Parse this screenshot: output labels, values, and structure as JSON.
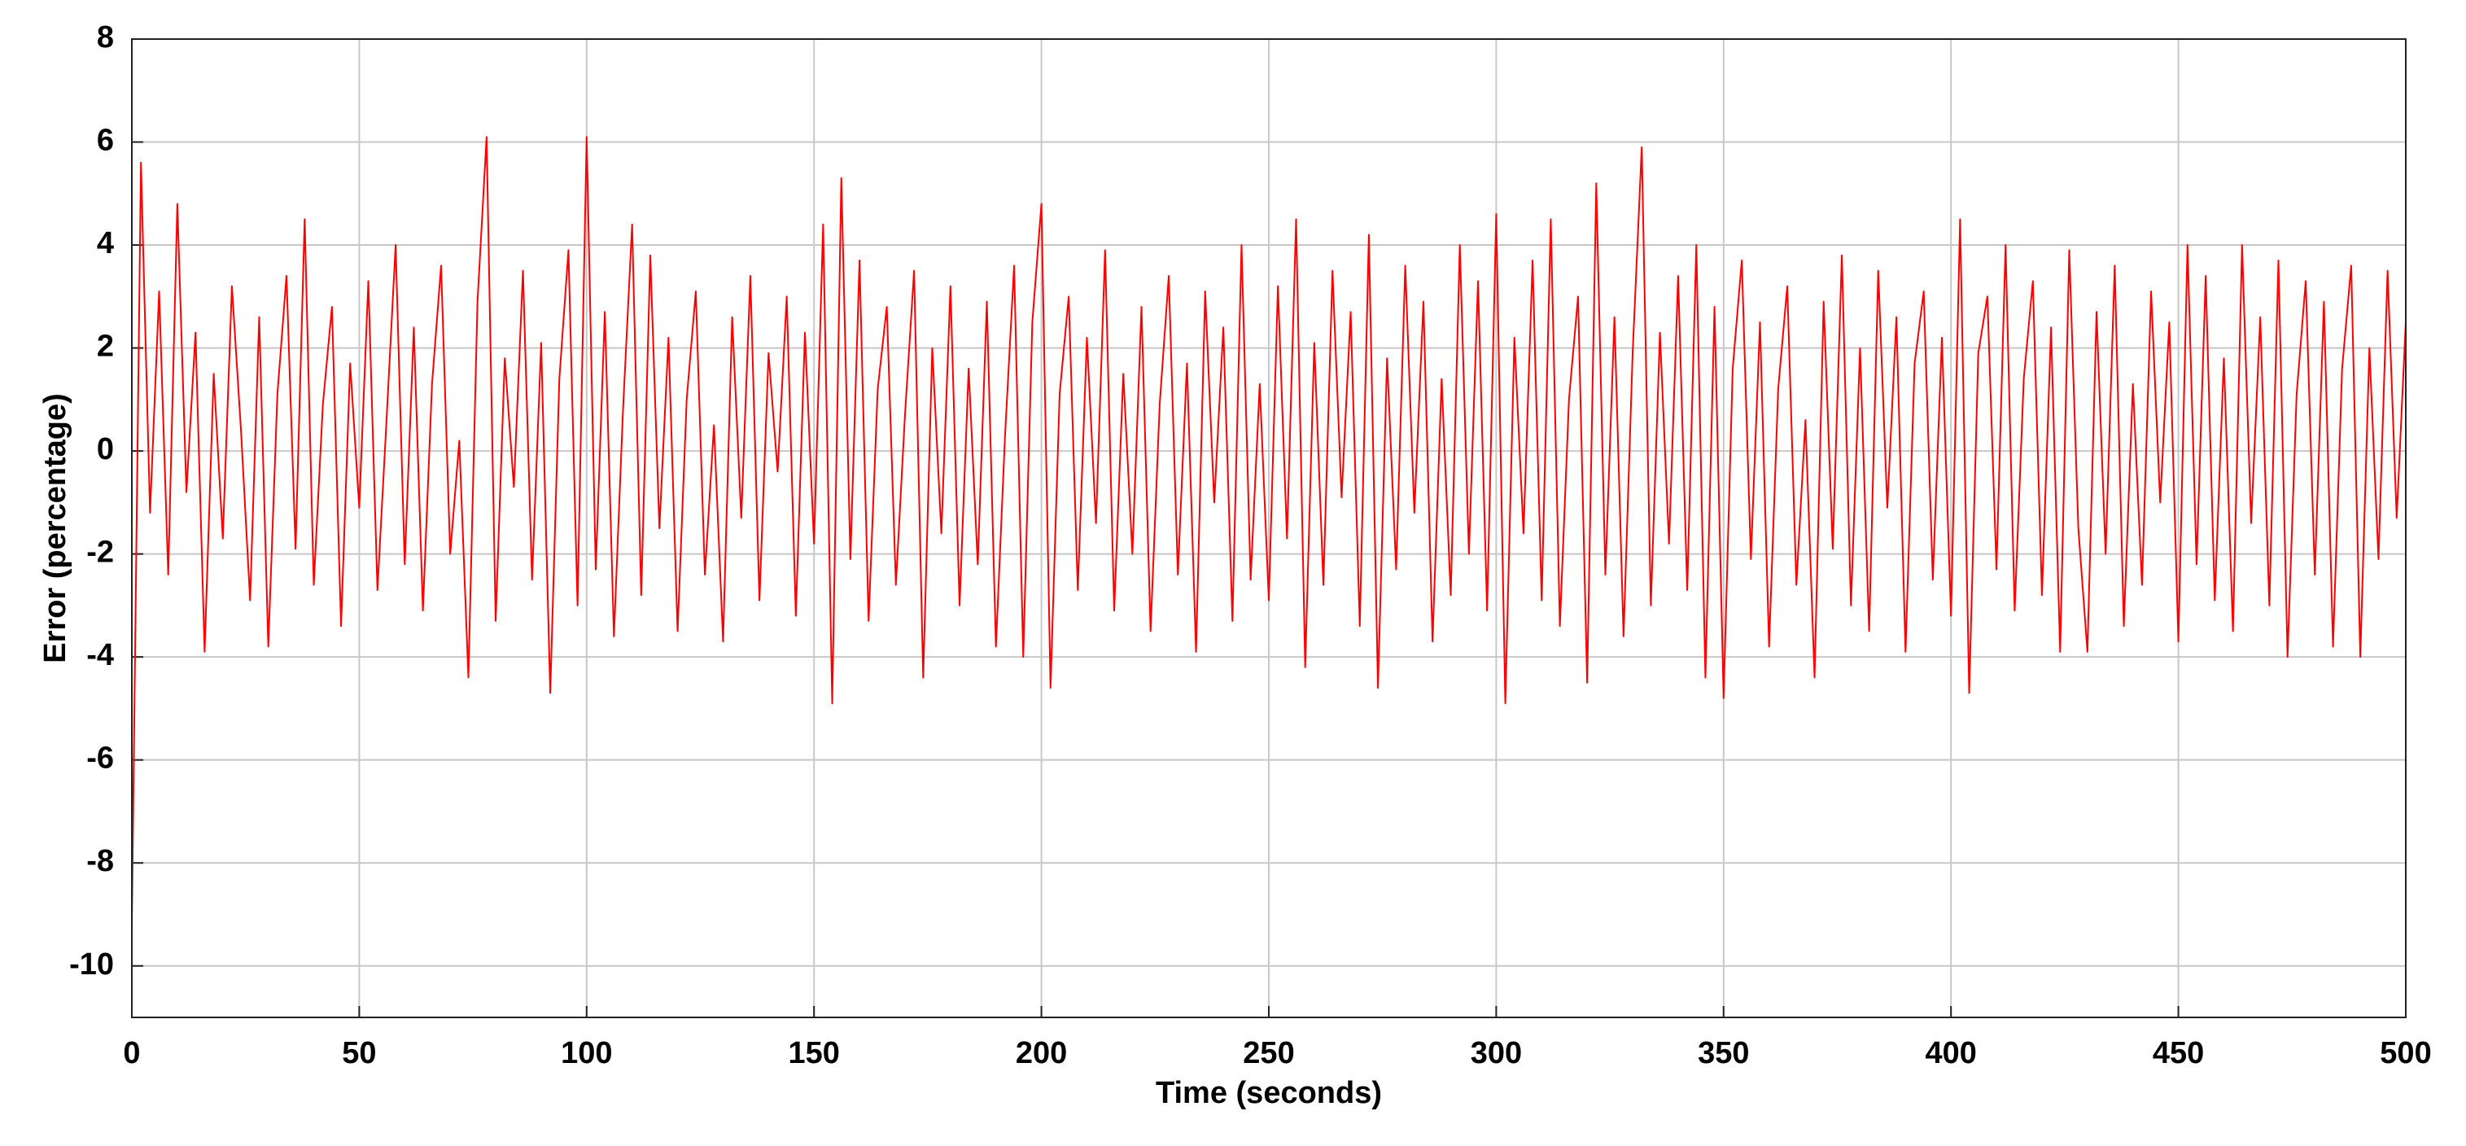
{
  "chart_data": {
    "type": "line",
    "xlabel": "Time (seconds)",
    "ylabel": "Error (percentage)",
    "color": "#ff0000",
    "grid": true,
    "xlim": [
      0,
      500
    ],
    "xticks": [
      0,
      50,
      100,
      150,
      200,
      250,
      300,
      350,
      400,
      450,
      500
    ],
    "ylim": [
      -11,
      8
    ],
    "yticks": [
      -10,
      -8,
      -6,
      -4,
      -2,
      0,
      2,
      4,
      6,
      8
    ],
    "x": [
      0,
      2,
      4,
      6,
      8,
      10,
      12,
      14,
      16,
      18,
      20,
      22,
      24,
      26,
      28,
      30,
      32,
      34,
      36,
      38,
      40,
      42,
      44,
      46,
      48,
      50,
      52,
      54,
      56,
      58,
      60,
      62,
      64,
      66,
      68,
      70,
      72,
      74,
      76,
      78,
      80,
      82,
      84,
      86,
      88,
      90,
      92,
      94,
      96,
      98,
      100,
      102,
      104,
      106,
      108,
      110,
      112,
      114,
      116,
      118,
      120,
      122,
      124,
      126,
      128,
      130,
      132,
      134,
      136,
      138,
      140,
      142,
      144,
      146,
      148,
      150,
      152,
      154,
      156,
      158,
      160,
      162,
      164,
      166,
      168,
      170,
      172,
      174,
      176,
      178,
      180,
      182,
      184,
      186,
      188,
      190,
      192,
      194,
      196,
      198,
      200,
      202,
      204,
      206,
      208,
      210,
      212,
      214,
      216,
      218,
      220,
      222,
      224,
      226,
      228,
      230,
      232,
      234,
      236,
      238,
      240,
      242,
      244,
      246,
      248,
      250,
      252,
      254,
      256,
      258,
      260,
      262,
      264,
      266,
      268,
      270,
      272,
      274,
      276,
      278,
      280,
      282,
      284,
      286,
      288,
      290,
      292,
      294,
      296,
      298,
      300,
      302,
      304,
      306,
      308,
      310,
      312,
      314,
      316,
      318,
      320,
      322,
      324,
      326,
      328,
      330,
      332,
      334,
      336,
      338,
      340,
      342,
      344,
      346,
      348,
      350,
      352,
      354,
      356,
      358,
      360,
      362,
      364,
      366,
      368,
      370,
      372,
      374,
      376,
      378,
      380,
      382,
      384,
      386,
      388,
      390,
      392,
      394,
      396,
      398,
      400,
      402,
      404,
      406,
      408,
      410,
      412,
      414,
      416,
      418,
      420,
      422,
      424,
      426,
      428,
      430,
      432,
      434,
      436,
      438,
      440,
      442,
      444,
      446,
      448,
      450,
      452,
      454,
      456,
      458,
      460,
      462,
      464,
      466,
      468,
      470,
      472,
      474,
      476,
      478,
      480,
      482,
      484,
      486,
      488,
      490,
      492,
      494,
      496,
      498,
      500
    ],
    "values": [
      -9.2,
      5.6,
      -1.2,
      3.1,
      -2.4,
      4.8,
      -0.8,
      2.3,
      -3.9,
      1.5,
      -1.7,
      3.2,
      0.4,
      -2.9,
      2.6,
      -3.8,
      1.1,
      3.4,
      -1.9,
      4.5,
      -2.6,
      0.9,
      2.8,
      -3.4,
      1.7,
      -1.1,
      3.3,
      -2.7,
      0.6,
      4.0,
      -2.2,
      2.4,
      -3.1,
      1.3,
      3.6,
      -2.0,
      0.2,
      -4.4,
      2.9,
      6.1,
      -3.3,
      1.8,
      -0.7,
      3.5,
      -2.5,
      2.1,
      -4.7,
      1.4,
      3.9,
      -3.0,
      6.1,
      -2.3,
      2.7,
      -3.6,
      0.8,
      4.4,
      -2.8,
      3.8,
      -1.5,
      2.2,
      -3.5,
      1.0,
      3.1,
      -2.4,
      0.5,
      -3.7,
      2.6,
      -1.3,
      3.4,
      -2.9,
      1.9,
      -0.4,
      3.0,
      -3.2,
      2.3,
      -1.8,
      4.4,
      -4.9,
      5.3,
      -2.1,
      3.7,
      -3.3,
      1.2,
      2.8,
      -2.6,
      0.7,
      3.5,
      -4.4,
      2.0,
      -1.6,
      3.2,
      -3.0,
      1.6,
      -2.2,
      2.9,
      -3.8,
      0.3,
      3.6,
      -4.0,
      2.5,
      4.8,
      -4.6,
      1.1,
      3.0,
      -2.7,
      2.2,
      -1.4,
      3.9,
      -3.1,
      1.5,
      -2.0,
      2.8,
      -3.5,
      0.9,
      3.4,
      -2.4,
      1.7,
      -3.9,
      3.1,
      -1.0,
      2.4,
      -3.3,
      4.0,
      -2.5,
      1.3,
      -2.9,
      3.2,
      -1.7,
      4.5,
      -4.2,
      2.1,
      -2.6,
      3.5,
      -0.9,
      2.7,
      -3.4,
      4.2,
      -4.6,
      1.8,
      -2.3,
      3.6,
      -1.2,
      2.9,
      -3.7,
      1.4,
      -2.8,
      4.0,
      -2.0,
      3.3,
      -3.1,
      4.6,
      -4.9,
      2.2,
      -1.6,
      3.7,
      -2.9,
      4.5,
      -3.4,
      1.0,
      3.0,
      -4.5,
      5.2,
      -2.4,
      2.6,
      -3.6,
      1.9,
      5.9,
      -3.0,
      2.3,
      -1.8,
      3.4,
      -2.7,
      4.0,
      -4.4,
      2.8,
      -4.8,
      1.6,
      3.7,
      -2.1,
      2.5,
      -3.8,
      1.2,
      3.2,
      -2.6,
      0.6,
      -4.4,
      2.9,
      -1.9,
      3.8,
      -3.0,
      2.0,
      -3.5,
      3.5,
      -1.1,
      2.6,
      -3.9,
      1.7,
      3.1,
      -2.5,
      2.2,
      -3.2,
      4.5,
      -4.7,
      1.9,
      3.0,
      -2.3,
      4.0,
      -3.1,
      1.4,
      3.3,
      -2.8,
      2.4,
      -3.9,
      3.9,
      -1.5,
      -3.9,
      2.7,
      -2.0,
      3.6,
      -3.4,
      1.3,
      -2.6,
      3.1,
      -1.0,
      2.5,
      -3.7,
      4.0,
      -2.2,
      3.4,
      -2.9,
      1.8,
      -3.5,
      4.0,
      -1.4,
      2.6,
      -3.0,
      3.7,
      -4.0,
      1.1,
      3.3,
      -2.4,
      2.9,
      -3.8,
      1.6,
      3.6,
      -4.0,
      2.0,
      -2.1,
      3.5,
      -1.3,
      2.5
    ]
  }
}
